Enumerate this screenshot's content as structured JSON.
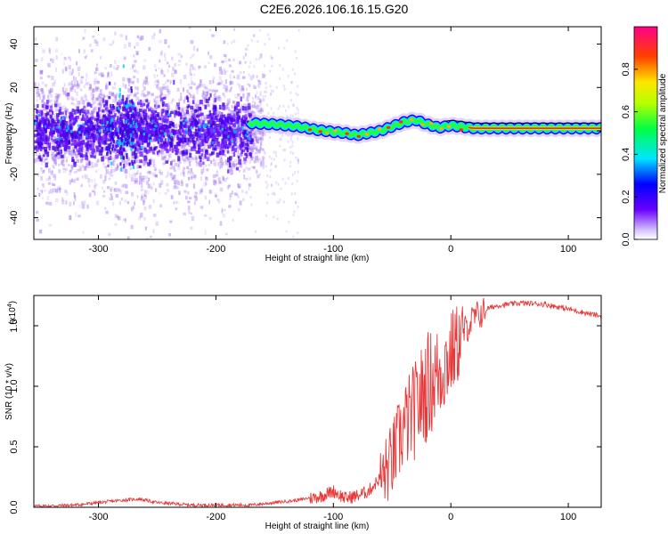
{
  "title": "C2E6.2026.106.16.15.G20",
  "colors": {
    "signal_line": "#e8393a",
    "scatter_bg": "#a070f0",
    "core_band": "#5a00ff"
  },
  "chart_data": [
    {
      "type": "heatmap",
      "name": "spectrogram",
      "xlabel": "Height of straight line (km)",
      "ylabel": "Frequency (Hz)",
      "xlim": [
        -355,
        128
      ],
      "ylim": [
        -50,
        48
      ],
      "xticks": [
        -300,
        -200,
        -100,
        0,
        100
      ],
      "yticks": [
        -40,
        -20,
        0,
        20,
        40
      ],
      "ridge": {
        "x": [
          -170,
          -150,
          -130,
          -115,
          -100,
          -90,
          -80,
          -60,
          -40,
          -30,
          -20,
          -10,
          0,
          20,
          60,
          85,
          95,
          128
        ],
        "y": [
          3.5,
          3.0,
          2.0,
          0.5,
          -0.5,
          -1.0,
          -2.0,
          0.0,
          4.0,
          5.0,
          3.0,
          1.5,
          2.5,
          1.2,
          1.2,
          1.2,
          1.2,
          1.2
        ]
      },
      "colorbar": {
        "label": "Normalized spectral amplitude",
        "range": [
          0.0,
          1.0
        ],
        "ticks": [
          "0.0",
          "0.2",
          "0.4",
          "0.6",
          "0.8"
        ],
        "tick_values": [
          0.0,
          0.2,
          0.4,
          0.6,
          0.8
        ]
      }
    },
    {
      "type": "line",
      "name": "snr",
      "xlabel": "Height of straight line (km)",
      "ylabel": "SNR (10 * v/v)",
      "scale_note": "(x10",
      "scale_exp": "4",
      "scale_close": ")",
      "xlim": [
        -355,
        128
      ],
      "ylim": [
        0,
        1.75
      ],
      "xticks": [
        -300,
        -200,
        -100,
        0,
        100
      ],
      "yticks": [
        "0.0",
        "0.5",
        "1.0",
        "1.5"
      ],
      "ytick_values": [
        0.0,
        0.5,
        1.0,
        1.5
      ],
      "series": [
        {
          "name": "SNR",
          "x": [
            -355,
            -320,
            -300,
            -280,
            -265,
            -250,
            -220,
            -200,
            -170,
            -150,
            -130,
            -110,
            -100,
            -90,
            -80,
            -70,
            -60,
            -50,
            -40,
            -30,
            -20,
            -10,
            0,
            10,
            20,
            30,
            40,
            60,
            80,
            100,
            128
          ],
          "y": [
            0.01,
            0.02,
            0.04,
            0.06,
            0.07,
            0.04,
            0.02,
            0.02,
            0.02,
            0.04,
            0.06,
            0.1,
            0.14,
            0.08,
            0.1,
            0.14,
            0.25,
            0.42,
            0.7,
            0.85,
            1.05,
            1.15,
            1.3,
            1.45,
            1.58,
            1.64,
            1.67,
            1.69,
            1.68,
            1.64,
            1.58
          ]
        }
      ]
    }
  ]
}
